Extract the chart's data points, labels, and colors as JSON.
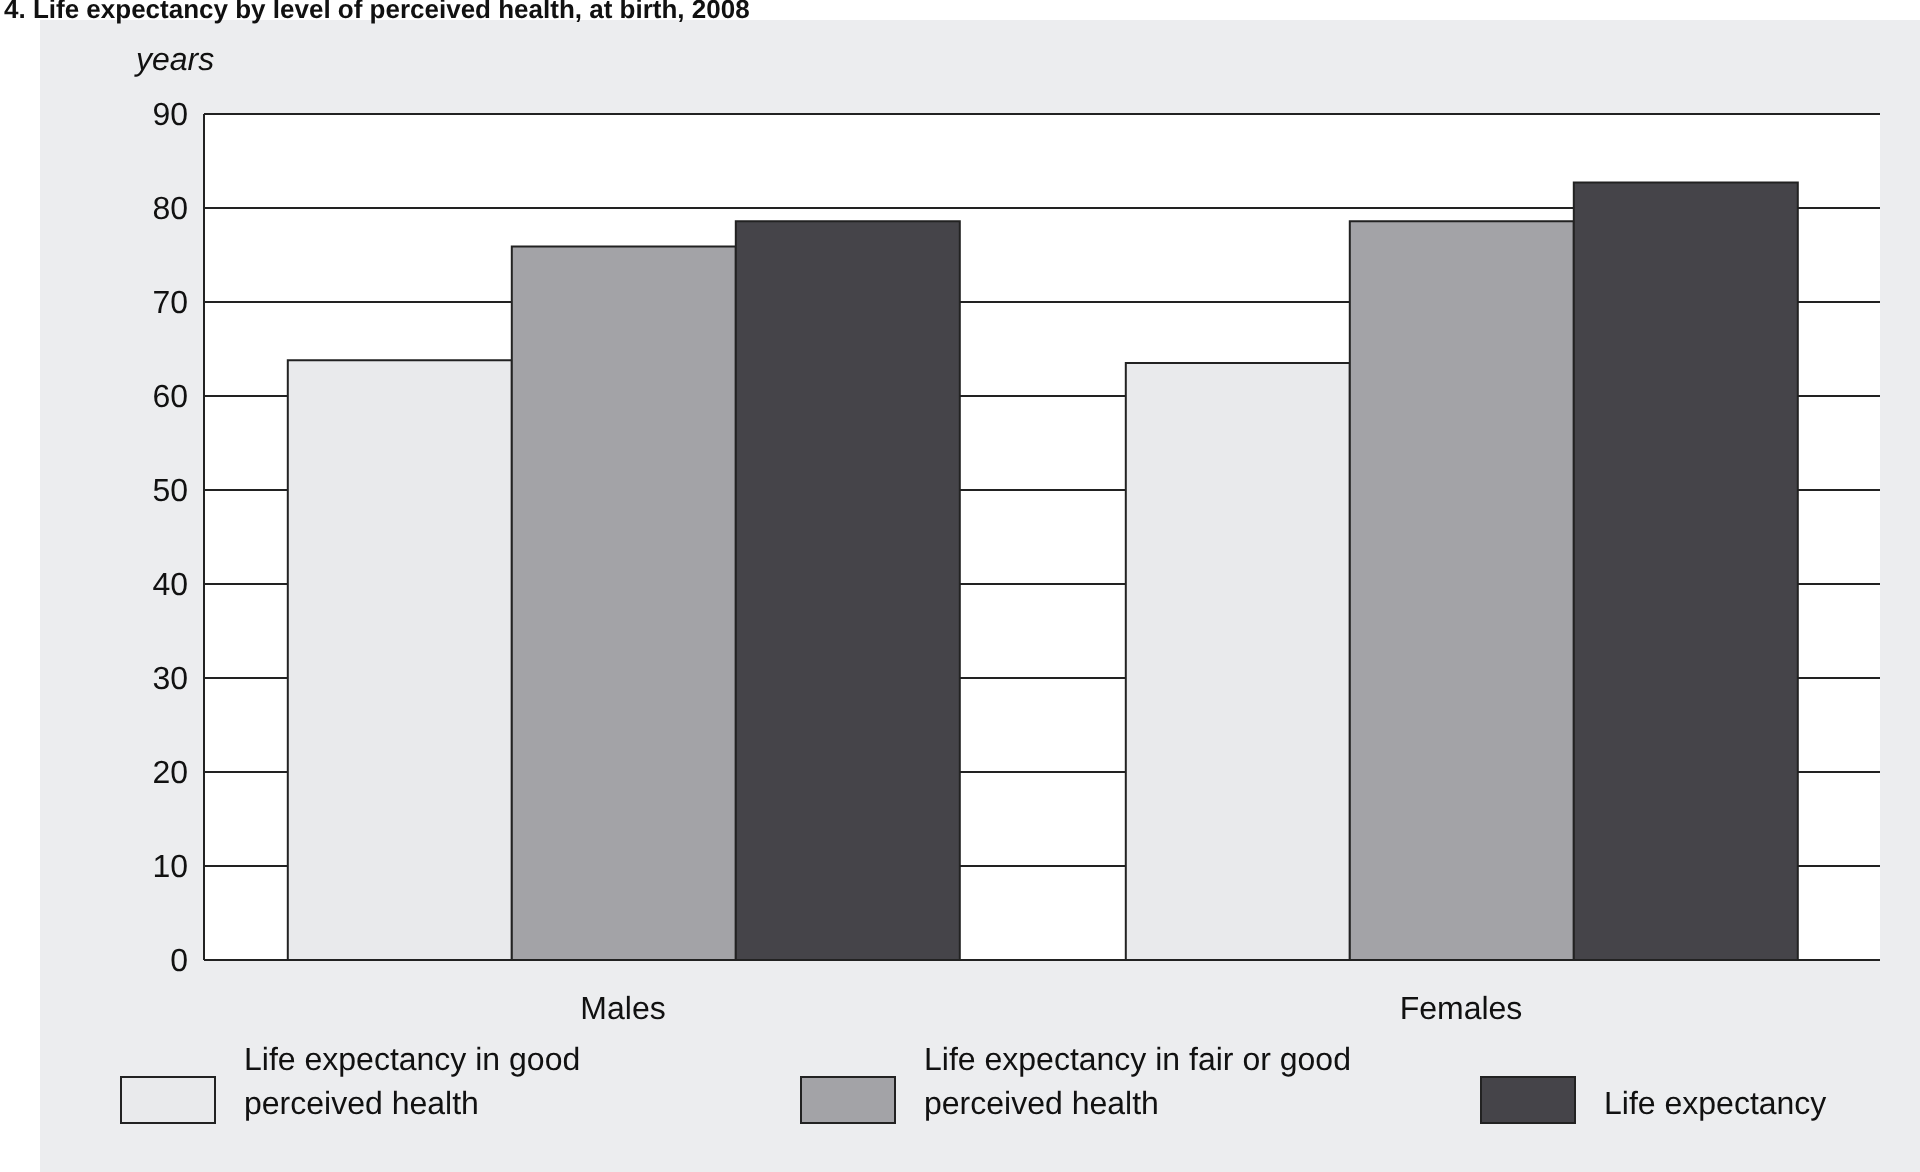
{
  "chart_data": {
    "type": "bar",
    "title": "4.  Life expectancy by level of perceived health, at birth, 2008",
    "ylabel": "years",
    "categories": [
      "Males",
      "Females"
    ],
    "series": [
      {
        "name": "Life expectancy in good perceived health",
        "color": "#e9eaec",
        "values": [
          63.8,
          63.5
        ]
      },
      {
        "name": "Life expectancy in fair or good perceived health",
        "color": "#a3a3a7",
        "values": [
          75.9,
          78.6
        ]
      },
      {
        "name": "Life expectancy",
        "color": "#454449",
        "values": [
          78.6,
          82.7
        ]
      }
    ],
    "ylim": [
      0,
      90
    ],
    "yticks": [
      0,
      10,
      20,
      30,
      40,
      50,
      60,
      70,
      80,
      90
    ],
    "grid": "y",
    "legend": "bottom"
  }
}
